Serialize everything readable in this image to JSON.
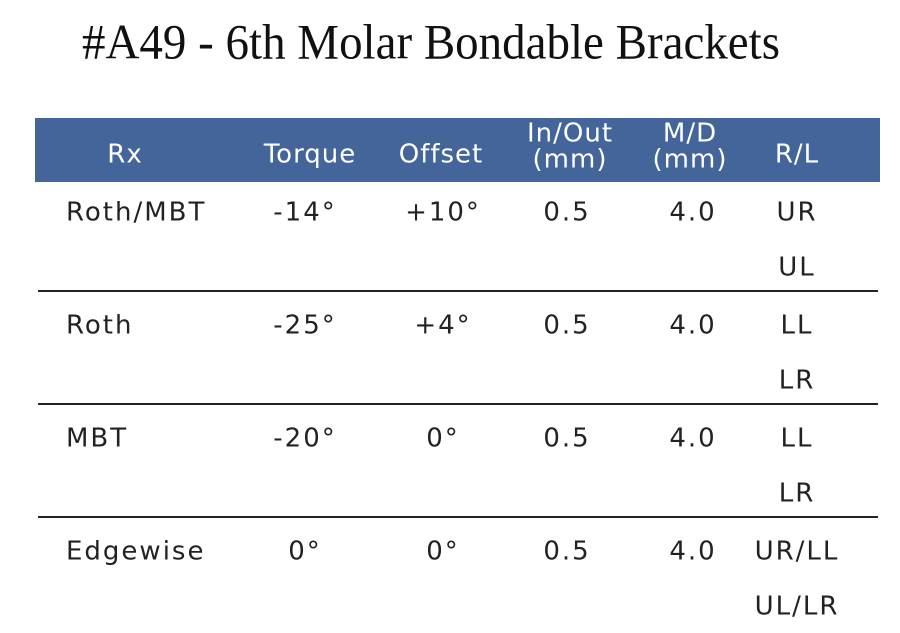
{
  "title": "#A49 - 6th Molar Bondable Brackets",
  "table": {
    "header": [
      [
        "Rx"
      ],
      [
        "Torque"
      ],
      [
        "Offset"
      ],
      [
        "In/Out",
        "(mm)"
      ],
      [
        "M/D",
        "(mm)"
      ],
      [
        "R/L"
      ]
    ],
    "rows": [
      {
        "cells": [
          "Roth/MBT",
          "-14°",
          "+10°",
          "0.5",
          "4.0"
        ],
        "rl": [
          "UR",
          "UL"
        ]
      },
      {
        "cells": [
          "Roth",
          "-25°",
          "+4°",
          "0.5",
          "4.0"
        ],
        "rl": [
          "LL",
          "LR"
        ]
      },
      {
        "cells": [
          "MBT",
          "-20°",
          "0°",
          "0.5",
          "4.0"
        ],
        "rl": [
          "LL",
          "LR"
        ]
      },
      {
        "cells": [
          "Edgewise",
          "0°",
          "0°",
          "0.5",
          "4.0"
        ],
        "rl": [
          "UR/LL",
          "UL/LR"
        ]
      }
    ]
  }
}
